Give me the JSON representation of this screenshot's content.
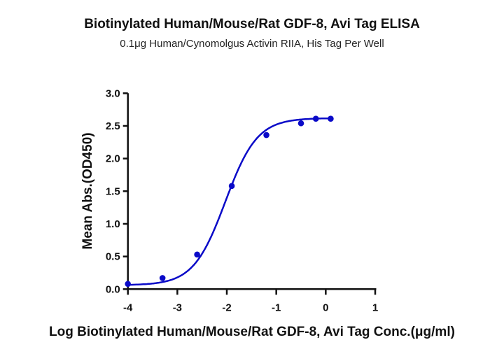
{
  "chart_data": {
    "type": "scatter",
    "title": "Biotinylated Human/Mouse/Rat GDF-8, Avi Tag ELISA",
    "subtitle": "0.1μg Human/Cynomolgus Activin RIIA, His Tag Per Well",
    "xlabel": "Log Biotinylated Human/Mouse/Rat GDF-8, Avi Tag Conc.(μg/ml)",
    "ylabel": "Mean Abs.(OD450)",
    "xlim": [
      -4,
      1
    ],
    "ylim": [
      0,
      3.0
    ],
    "xticks": [
      "-4",
      "-3",
      "-2",
      "-1",
      "0",
      "1"
    ],
    "yticks": [
      "0.0",
      "0.5",
      "1.0",
      "1.5",
      "2.0",
      "2.5",
      "3.0"
    ],
    "grid": false,
    "fit_curve": "sigmoidal 4PL",
    "color": "#0a0ac8",
    "series": [
      {
        "x": [
          -4.0,
          -3.3,
          -2.6,
          -1.9,
          -1.2,
          -0.5,
          -0.2,
          0.1
        ],
        "y": [
          0.08,
          0.17,
          0.53,
          1.58,
          2.36,
          2.54,
          2.61,
          2.61
        ]
      }
    ]
  }
}
